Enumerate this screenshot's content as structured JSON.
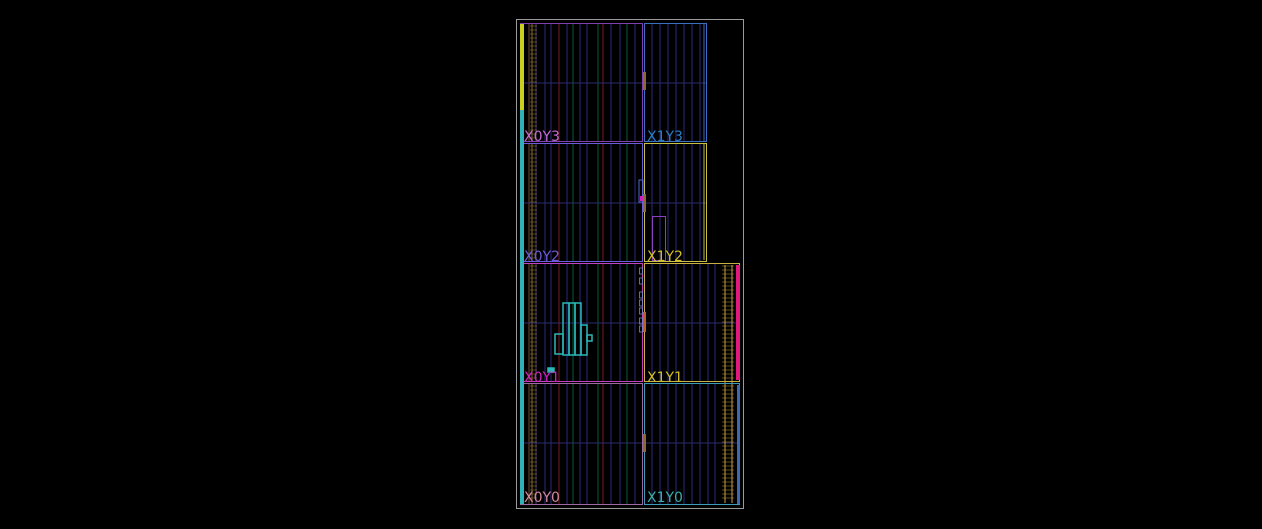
{
  "colors": {
    "background": "#000000",
    "device_outline": "#9a9a9a",
    "region_border": "#7a3aa8",
    "hand_label_X0Y3": "#c46bd0",
    "hand_label_X1Y3": "#2a7fc4",
    "hand_label_X0Y2": "#6a5bd8",
    "hand_label_X1Y2": "#d4c020",
    "hand_label_X0Y1": "#d020c0",
    "hand_label_X1Y1": "#d4c020",
    "hand_label_X0Y0": "#d08a9a",
    "hand_label_X1Y0": "#3ab0a8",
    "io_column": "#c8a040",
    "placed_logic": "#2ab8b8",
    "pblock": "#e01880"
  },
  "regions": [
    {
      "id": "X0Y3",
      "label": "X0Y3",
      "color": "#c46bd0"
    },
    {
      "id": "X1Y3",
      "label": "X1Y3",
      "color": "#2a7fc4"
    },
    {
      "id": "X0Y2",
      "label": "X0Y2",
      "color": "#6a5bd8"
    },
    {
      "id": "X1Y2",
      "label": "X1Y2",
      "color": "#d4c020"
    },
    {
      "id": "X0Y1",
      "label": "X0Y1",
      "color": "#d020c0"
    },
    {
      "id": "X1Y1",
      "label": "X1Y1",
      "color": "#d4c020"
    },
    {
      "id": "X0Y0",
      "label": "X0Y0",
      "color": "#d08a9a"
    },
    {
      "id": "X1Y0",
      "label": "X1Y0",
      "color": "#3ab0a8"
    }
  ]
}
